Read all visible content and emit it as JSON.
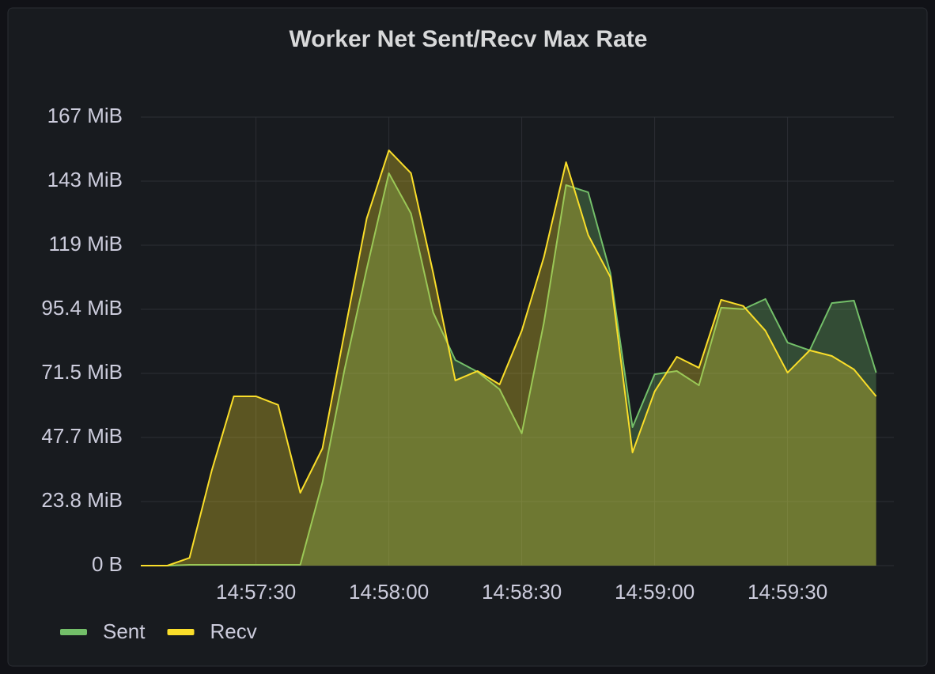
{
  "chart_data": {
    "type": "area",
    "title": "Worker Net Sent/Recv Max Rate",
    "x": [
      "14:57:04",
      "14:57:10",
      "14:57:15",
      "14:57:20",
      "14:57:25",
      "14:57:30",
      "14:57:35",
      "14:57:40",
      "14:57:45",
      "14:57:50",
      "14:57:55",
      "14:58:00",
      "14:58:05",
      "14:58:10",
      "14:58:15",
      "14:58:20",
      "14:58:25",
      "14:58:30",
      "14:58:35",
      "14:58:40",
      "14:58:45",
      "14:58:50",
      "14:58:55",
      "14:59:00",
      "14:59:05",
      "14:59:10",
      "14:59:15",
      "14:59:20",
      "14:59:25",
      "14:59:30",
      "14:59:35",
      "14:59:40",
      "14:59:45",
      "14:59:50"
    ],
    "series": [
      {
        "name": "Sent",
        "color": "#73bf69",
        "values": [
          0,
          0,
          0.3,
          0.3,
          0.3,
          0.3,
          0.3,
          0.3,
          30.9,
          73.0,
          110.4,
          146.0,
          131.0,
          94.2,
          76.5,
          72.1,
          65.6,
          49.2,
          90.4,
          141.6,
          138.9,
          108.9,
          51.5,
          71.2,
          72.4,
          67.1,
          96.0,
          95.4,
          99.2,
          83.0,
          80.1,
          97.7,
          98.6,
          71.8
        ]
      },
      {
        "name": "Recv",
        "color": "#fade2a",
        "values": [
          0,
          0,
          2.9,
          35.3,
          63.0,
          63.0,
          59.8,
          27.1,
          43.6,
          86.8,
          129.2,
          154.5,
          146.0,
          108.9,
          68.9,
          72.4,
          67.4,
          87.4,
          114.8,
          150.1,
          123.0,
          107.4,
          42.1,
          64.8,
          77.7,
          73.6,
          98.9,
          96.6,
          87.4,
          71.8,
          80.1,
          78.0,
          73.0,
          63.0
        ]
      }
    ],
    "xlim": [
      "14:57:04",
      "14:59:54"
    ],
    "xticks": [
      "14:57:30",
      "14:58:00",
      "14:58:30",
      "14:59:00",
      "14:59:30"
    ],
    "ylim": [
      0,
      166.89
    ],
    "yticks": [
      {
        "value": 0,
        "label": "0 B"
      },
      {
        "value": 23.84,
        "label": "23.8 MiB"
      },
      {
        "value": 47.68,
        "label": "47.7 MiB"
      },
      {
        "value": 71.53,
        "label": "71.5 MiB"
      },
      {
        "value": 95.37,
        "label": "95.4 MiB"
      },
      {
        "value": 119.21,
        "label": "119 MiB"
      },
      {
        "value": 143.05,
        "label": "143 MiB"
      },
      {
        "value": 166.89,
        "label": "167 MiB"
      }
    ],
    "grid": true,
    "legend": "bottom-left"
  }
}
